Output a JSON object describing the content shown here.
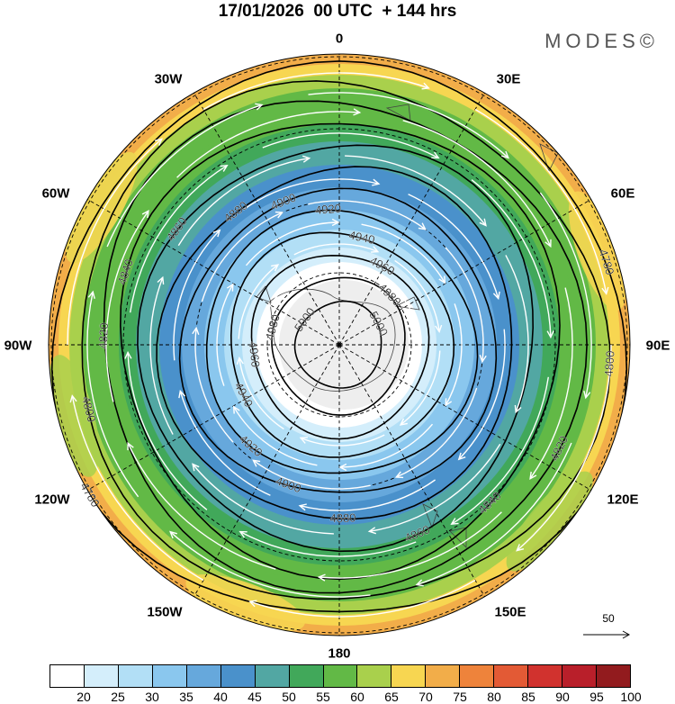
{
  "title": "17/01/2026  00 UTC  + 144 hrs",
  "logo": "MODES©",
  "longitude_labels": {
    "lon_0": "0",
    "lon_30e": "30E",
    "lon_60e": "60E",
    "lon_90e": "90E",
    "lon_120e": "120E",
    "lon_150e": "150E",
    "lon_180": "180",
    "lon_150w": "150W",
    "lon_120w": "120W",
    "lon_90w": "90W",
    "lon_60w": "60W",
    "lon_30w": "30W"
  },
  "contour_labels": [
    "4780",
    "4800",
    "4820",
    "4840",
    "4860",
    "4880",
    "4900",
    "4920",
    "4940",
    "4960",
    "4980",
    "5000"
  ],
  "reference_vector": {
    "label": "50"
  },
  "colorbar": {
    "ticks": [
      "20",
      "25",
      "30",
      "35",
      "40",
      "45",
      "50",
      "55",
      "60",
      "65",
      "70",
      "75",
      "80",
      "85",
      "90",
      "95",
      "100"
    ],
    "colors": [
      "#ffffff",
      "#d4eefb",
      "#b2dff6",
      "#8ac7ee",
      "#66a8dc",
      "#4a91cb",
      "#52a7a3",
      "#41a85a",
      "#62b946",
      "#a9d04c",
      "#f7d651",
      "#f2ad49",
      "#ee833b",
      "#e35a35",
      "#d1322e",
      "#b91f2a",
      "#921b1e"
    ]
  }
}
